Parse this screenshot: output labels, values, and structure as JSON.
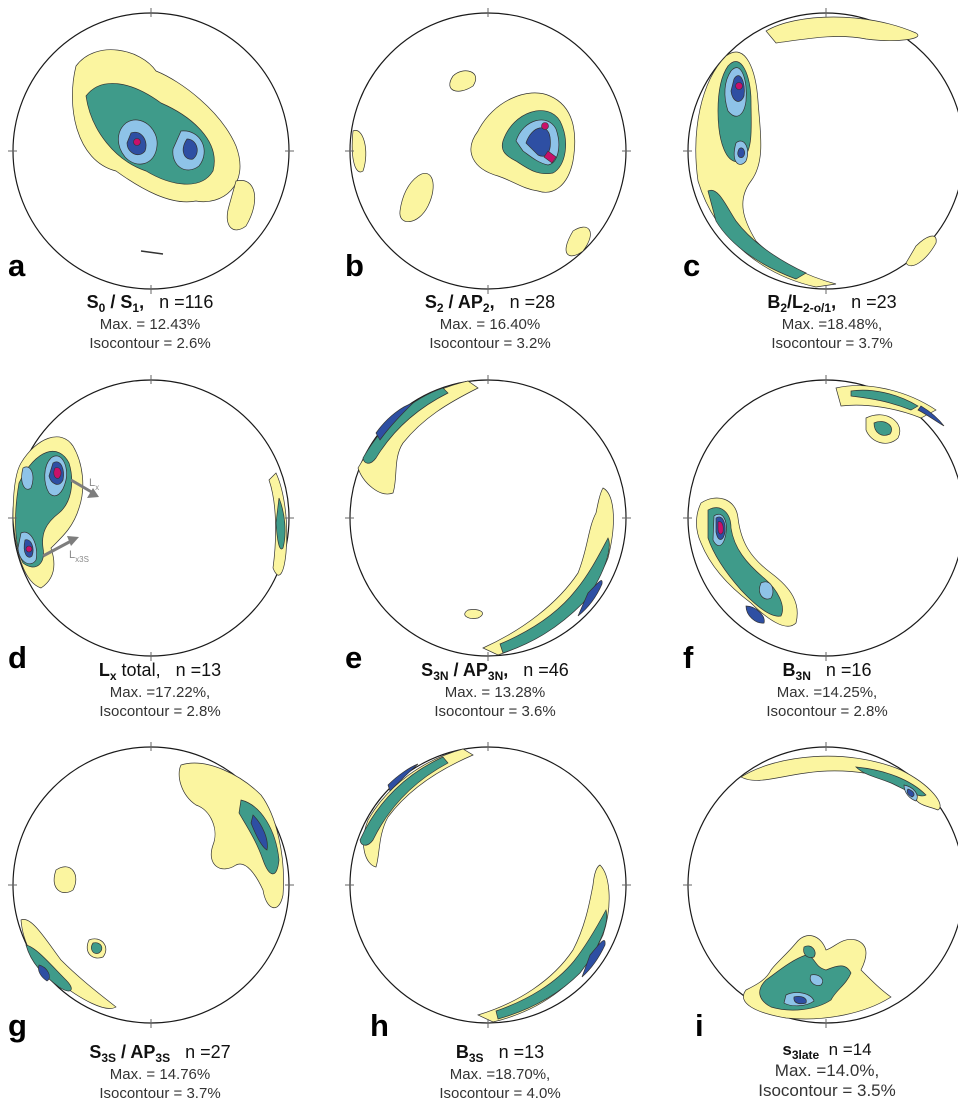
{
  "panels": [
    {
      "id": "a",
      "letter": "a",
      "sym1": "S",
      "sub1": "0",
      "mid": " / ",
      "sym2": "S",
      "sub2": "1",
      "tail": ",",
      "n": "n =116",
      "max": "Max. = 12.43%",
      "iso": "Isocontour = 2.6%"
    },
    {
      "id": "b",
      "letter": "b",
      "sym1": "S",
      "sub1": "2",
      "mid": " / ",
      "sym2": "AP",
      "sub2": "2",
      "tail": ",",
      "n": "n =28",
      "max": "Max. = 16.40%",
      "iso": "Isocontour = 3.2%"
    },
    {
      "id": "c",
      "letter": "c",
      "sym1": "B",
      "sub1": "2",
      "mid": "/",
      "sym2": "L",
      "sub2": "2-o/1",
      "tail": ",",
      "n": "n =23",
      "max": "Max. =18.48%,",
      "iso": "Isocontour = 3.7%"
    },
    {
      "id": "d",
      "letter": "d",
      "sym1": "L",
      "sub1": "x",
      "mid": " total,",
      "sym2": "",
      "sub2": "",
      "tail": "",
      "n": "n =13",
      "max": "Max. =17.22%,",
      "iso": "Isocontour = 2.8%",
      "annotations": [
        {
          "base": "L",
          "sub": "x"
        },
        {
          "base": "L",
          "sub": "x3S"
        }
      ]
    },
    {
      "id": "e",
      "letter": "e",
      "sym1": "S",
      "sub1": "3N",
      "mid": " / ",
      "sym2": "AP",
      "sub2": "3N",
      "tail": ",",
      "n": "n =46",
      "max": "Max. = 13.28%",
      "iso": "Isocontour = 3.6%"
    },
    {
      "id": "f",
      "letter": "f",
      "sym1": "B",
      "sub1": "3N",
      "mid": "",
      "sym2": "",
      "sub2": "",
      "tail": "",
      "n": "n =16",
      "max": "Max. =14.25%,",
      "iso": "Isocontour = 2.8%"
    },
    {
      "id": "g",
      "letter": "g",
      "sym1": "S",
      "sub1": "3S",
      "mid": " / ",
      "sym2": "AP",
      "sub2": "3S",
      "tail": "",
      "n": "n =27",
      "max": "Max. = 14.76%",
      "iso": "Isocontour = 3.7%"
    },
    {
      "id": "h",
      "letter": "h",
      "sym1": "B",
      "sub1": "3S",
      "mid": "",
      "sym2": "",
      "sub2": "",
      "tail": "",
      "n": "n =13",
      "max": "Max. =18.70%,",
      "iso": "Isocontour = 4.0%"
    },
    {
      "id": "i",
      "letter": "i",
      "sym1": "s",
      "sub1": "3late",
      "mid": "",
      "sym2": "",
      "sub2": "",
      "tail": "",
      "n": "n =14",
      "max": "Max. =14.0%,",
      "iso": "Isocontour = 3.5%"
    }
  ],
  "colors": {
    "level1": "#fbf5a0",
    "level2": "#3f9b8a",
    "level3": "#8ec3e8",
    "level4": "#2e4fa3",
    "level5": "#c8106a",
    "outline": "#1a1a1a",
    "arrow": "#7d7d7d"
  }
}
